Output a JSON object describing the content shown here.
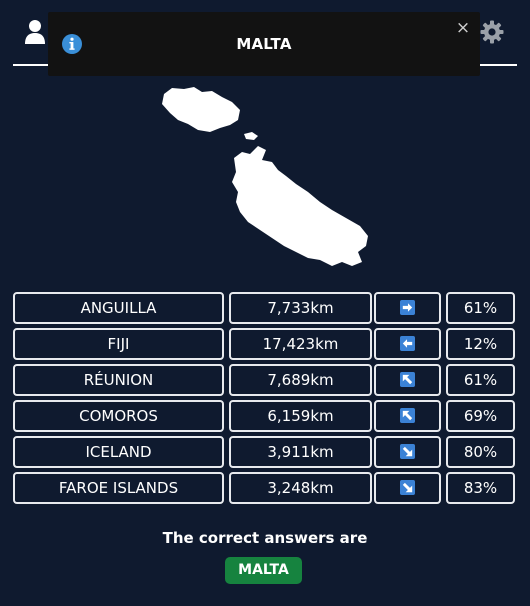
{
  "toast": {
    "title": "MALTA",
    "close_label": "×"
  },
  "icons": {
    "user": "user-icon",
    "settings": "gear-icon",
    "info": "info-icon",
    "close": "close-icon"
  },
  "colors": {
    "background": "#0f1a2f",
    "toast_background": "#121212",
    "cell_border": "#e8eaee",
    "direction_tile": "#3b82d6",
    "answer_badge": "#16833f"
  },
  "guesses": [
    {
      "country": "ANGUILLA",
      "distance": "7,733km",
      "direction": "right",
      "proximity": "61%"
    },
    {
      "country": "FIJI",
      "distance": "17,423km",
      "direction": "left",
      "proximity": "12%"
    },
    {
      "country": "RÉUNION",
      "distance": "7,689km",
      "direction": "up-left",
      "proximity": "61%"
    },
    {
      "country": "COMOROS",
      "distance": "6,159km",
      "direction": "up-left",
      "proximity": "69%"
    },
    {
      "country": "ICELAND",
      "distance": "3,911km",
      "direction": "down-right",
      "proximity": "80%"
    },
    {
      "country": "FAROE ISLANDS",
      "distance": "3,248km",
      "direction": "down-right",
      "proximity": "83%"
    }
  ],
  "answer": {
    "caption": "The correct answers are",
    "country": "MALTA"
  }
}
